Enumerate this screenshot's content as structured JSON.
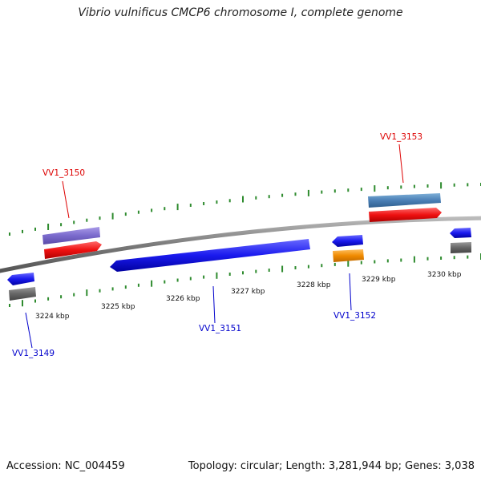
{
  "title": "Vibrio vulnificus CMCP6 chromosome I, complete genome",
  "footer": {
    "accession": "Accession: NC_004459",
    "summary": "Topology: circular; Length: 3,281,944 bp; Genes: 3,038"
  },
  "ruler": {
    "labels": [
      "3224 kbp",
      "3225 kbp",
      "3226 kbp",
      "3227 kbp",
      "3228 kbp",
      "3229 kbp",
      "3230 kbp"
    ],
    "tick_color": "#2e8b2e"
  },
  "gene_labels": [
    {
      "name": "VV1_3149",
      "color": "#0000cc"
    },
    {
      "name": "VV1_3150",
      "color": "#dd0000"
    },
    {
      "name": "VV1_3151",
      "color": "#0000cc"
    },
    {
      "name": "VV1_3152",
      "color": "#0000cc"
    },
    {
      "name": "VV1_3153",
      "color": "#dd0000"
    }
  ],
  "colors": {
    "backbone": "#8a8a8a",
    "forward_cds": "#ee1111",
    "reverse_cds": "#1a1aee",
    "gene_gray": "#666666",
    "gene_purple": "#7a6acc",
    "gene_steel": "#4a7fb5",
    "gene_orange": "#f08a00"
  }
}
